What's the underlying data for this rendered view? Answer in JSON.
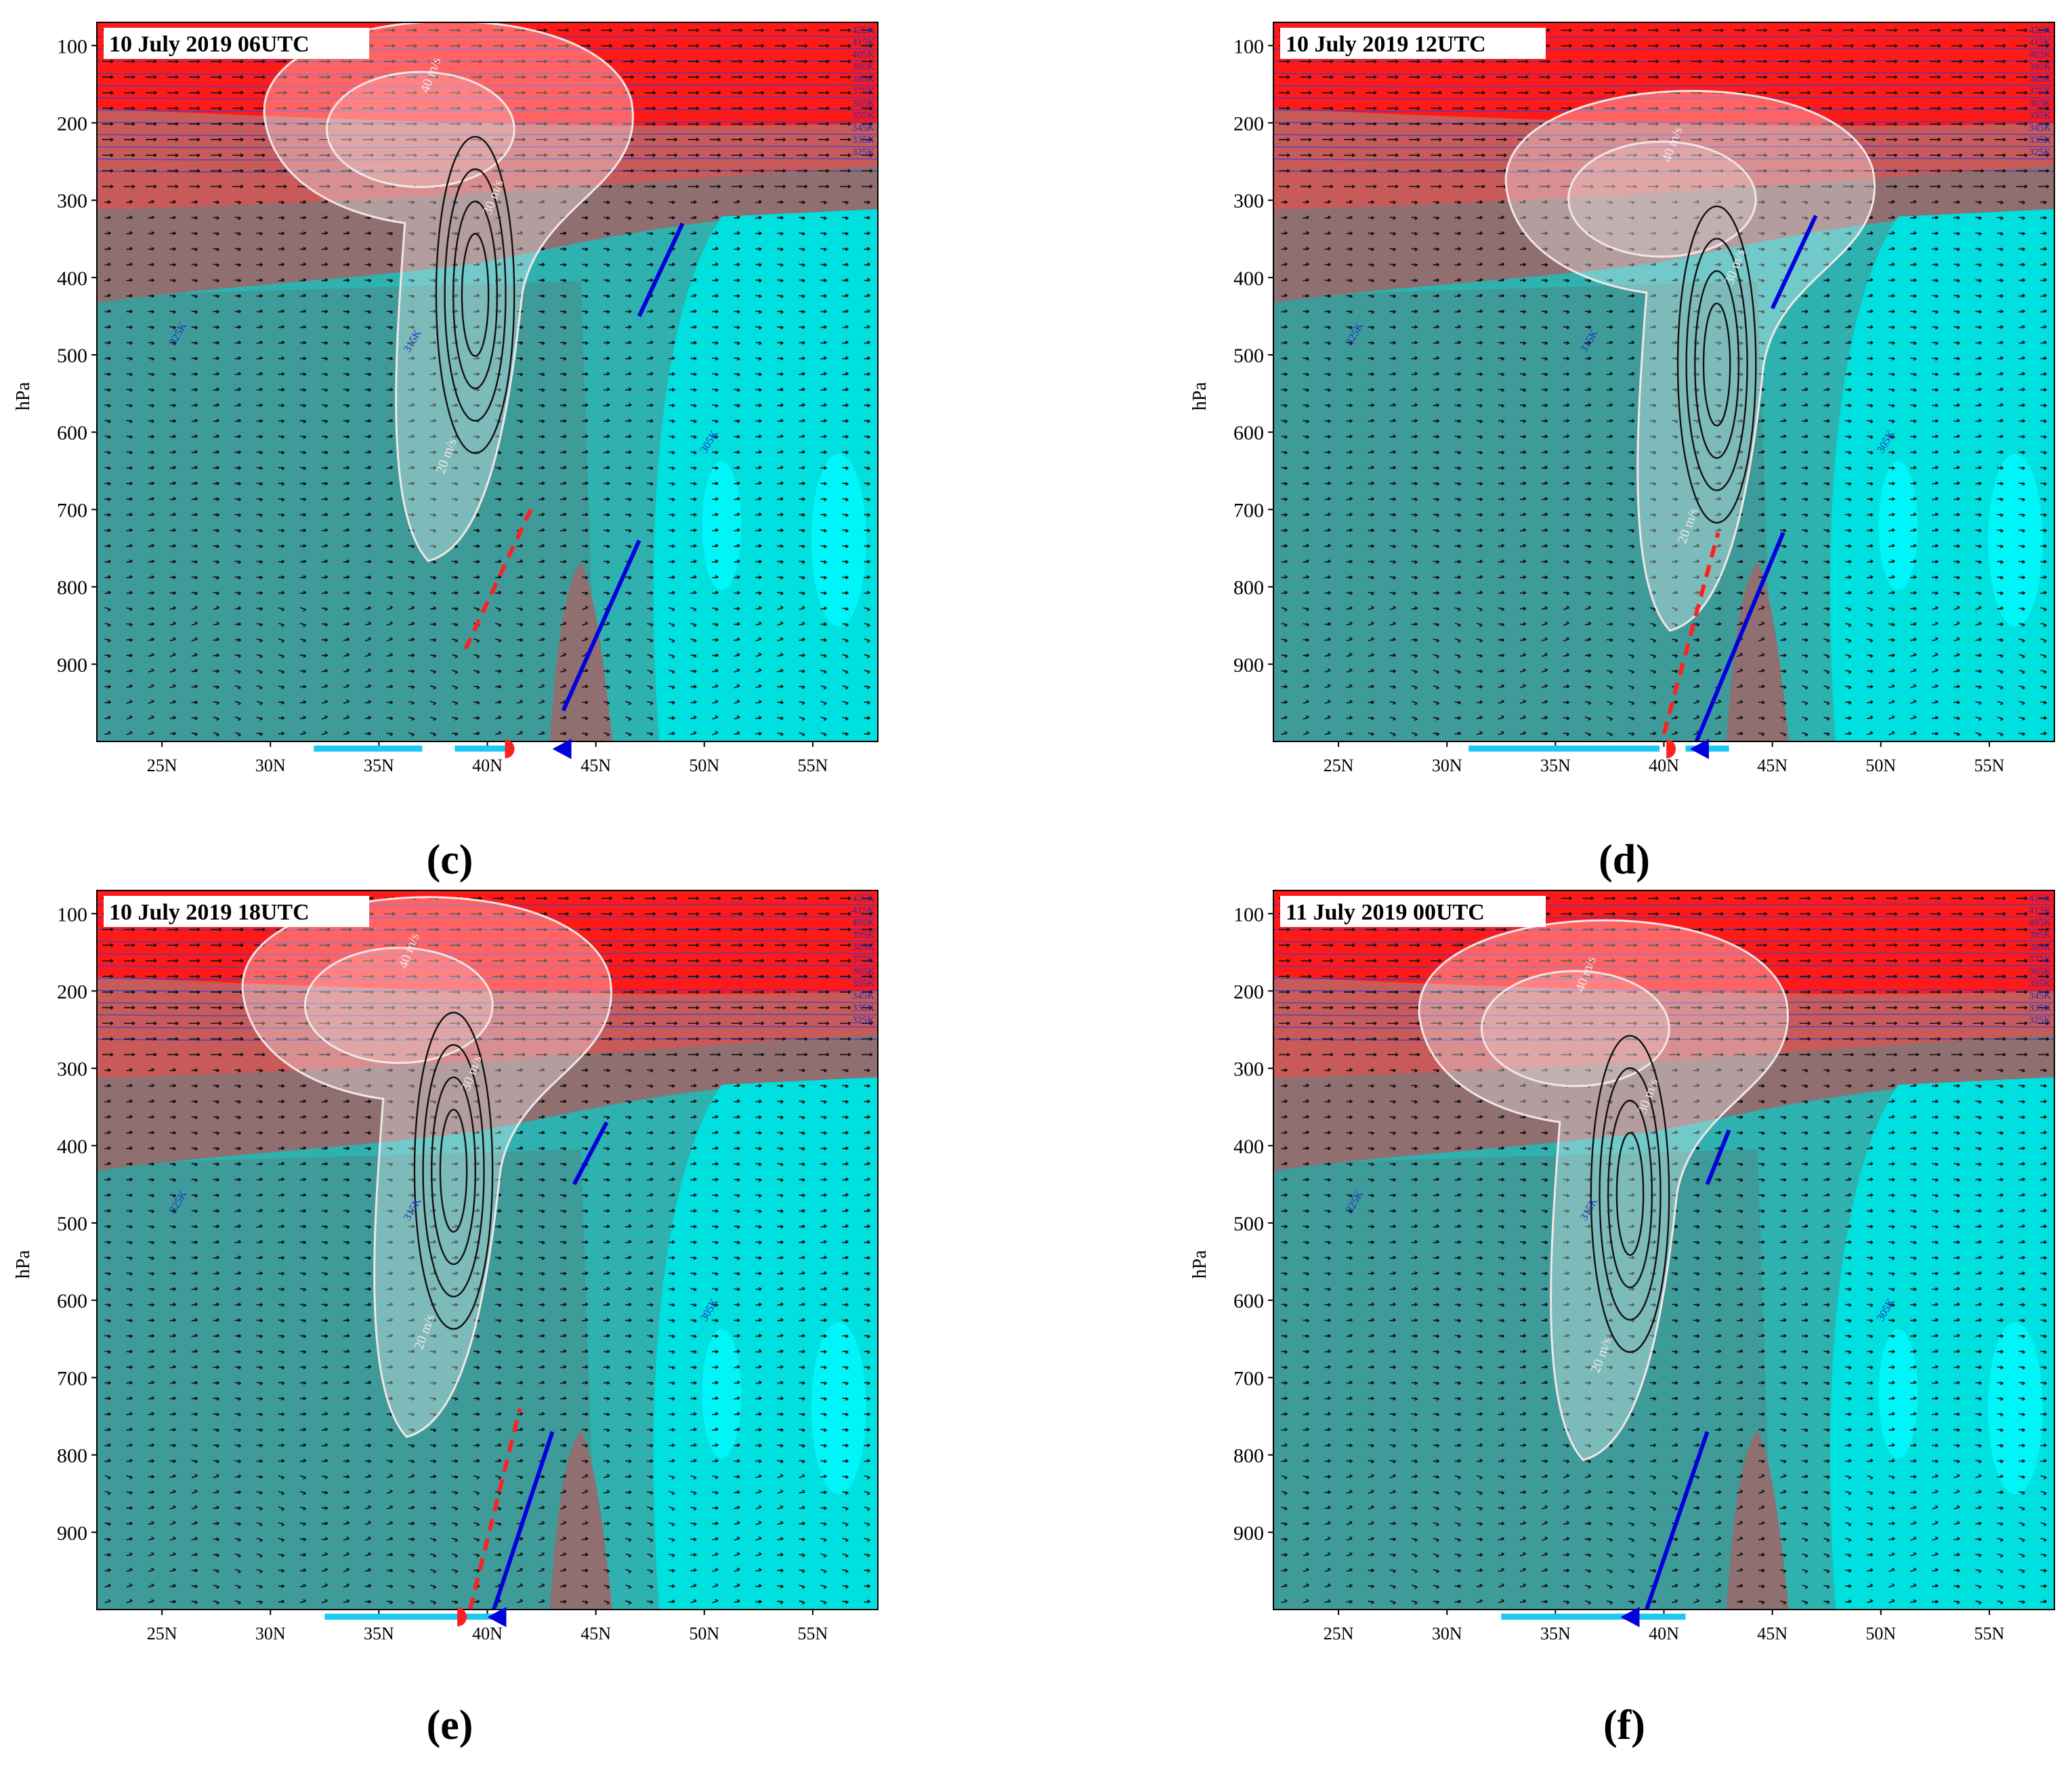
{
  "figure": {
    "panels": [
      {
        "letter": "(c)",
        "title": "10 July 2019 06UTC"
      },
      {
        "letter": "(d)",
        "title": "10 July 2019 12UTC"
      },
      {
        "letter": "(e)",
        "title": "10 July 2019 18UTC"
      },
      {
        "letter": "(f)",
        "title": "11 July 2019 00UTC"
      }
    ],
    "y_axis_label": "hPa",
    "y_ticks": [
      "100",
      "200",
      "300",
      "400",
      "500",
      "600",
      "700",
      "800",
      "900"
    ],
    "x_ticks": [
      "25N",
      "30N",
      "35N",
      "40N",
      "45N",
      "50N",
      "55N"
    ],
    "isotach_labels": [
      "40 m/s",
      "30 m/s",
      "20 m/s"
    ],
    "theta_labels_top": [
      "425K",
      "415K",
      "405K",
      "395K",
      "385K",
      "375K",
      "365K",
      "355K",
      "345K",
      "335K",
      "325K"
    ],
    "theta_labels_low": [
      "325K",
      "315K",
      "305K"
    ],
    "colors": {
      "stratosphere_red": "#ff1a1a",
      "upper_warm": "#c85a5a",
      "mid_brown": "#8f6f70",
      "mid_teal": "#3f9b99",
      "low_teal": "#2fb1b0",
      "cyan_high": "#00e0de",
      "cyan_bright": "#00f5f8",
      "cold_front": "#0000dd",
      "warm_front": "#ff2020",
      "front_bar": "#1ec8f0"
    }
  },
  "chart_data": [
    {
      "type": "cross-section",
      "title": "10 July 2019 06UTC",
      "ylabel": "hPa",
      "ylim": [
        1000,
        70
      ],
      "y_reversed": true,
      "xlim": [
        22,
        58
      ],
      "x_ticks": [
        25,
        30,
        35,
        40,
        45,
        50,
        55
      ],
      "y_ticks": [
        100,
        200,
        300,
        400,
        500,
        600,
        700,
        800,
        900
      ],
      "jet_core_lat": 38,
      "jet_core_hpa": 190,
      "jet_max_ms": 40,
      "warm_front_lat": [
        42.0,
        39.0
      ],
      "warm_front_hpa": [
        700,
        880
      ],
      "cold_front_low_lat": [
        43.5,
        47.0
      ],
      "cold_front_low_hpa": [
        960,
        740
      ],
      "cold_front_up_lat": [
        47.0,
        49.0
      ],
      "cold_front_up_hpa": [
        450,
        330
      ],
      "surface_bar_lat": [
        [
          32,
          37
        ],
        [
          38.5,
          41
        ]
      ],
      "surface_warm_symbol_lat": 41.0,
      "surface_cold_symbol_lat": 43.5
    },
    {
      "type": "cross-section",
      "title": "10 July 2019 12UTC",
      "ylabel": "hPa",
      "ylim": [
        1000,
        70
      ],
      "y_reversed": true,
      "xlim": [
        22,
        58
      ],
      "x_ticks": [
        25,
        30,
        35,
        40,
        45,
        50,
        55
      ],
      "y_ticks": [
        100,
        200,
        300,
        400,
        500,
        600,
        700,
        800,
        900
      ],
      "jet_core_lat": 41,
      "jet_core_hpa": 280,
      "jet_max_ms": 40,
      "warm_front_lat": [
        40.0,
        42.5
      ],
      "warm_front_hpa": [
        990,
        730
      ],
      "cold_front_low_lat": [
        41.5,
        45.5
      ],
      "cold_front_low_hpa": [
        1000,
        730
      ],
      "cold_front_up_lat": [
        45.0,
        47.0
      ],
      "cold_front_up_hpa": [
        440,
        320
      ],
      "surface_bar_lat": [
        [
          31,
          39.8
        ],
        [
          41,
          43
        ]
      ],
      "surface_warm_symbol_lat": 40.3,
      "surface_cold_symbol_lat": 41.7
    },
    {
      "type": "cross-section",
      "title": "10 July 2019 18UTC",
      "ylabel": "hPa",
      "ylim": [
        1000,
        70
      ],
      "y_reversed": true,
      "xlim": [
        22,
        58
      ],
      "x_ticks": [
        25,
        30,
        35,
        40,
        45,
        50,
        55
      ],
      "y_ticks": [
        100,
        200,
        300,
        400,
        500,
        600,
        700,
        800,
        900
      ],
      "jet_core_lat": 37,
      "jet_core_hpa": 200,
      "jet_max_ms": 40,
      "warm_front_lat": [
        39.2,
        41.5
      ],
      "warm_front_hpa": [
        1000,
        740
      ],
      "cold_front_low_lat": [
        40.3,
        43.0
      ],
      "cold_front_low_hpa": [
        1000,
        770
      ],
      "cold_front_up_lat": [
        44.0,
        45.5
      ],
      "cold_front_up_hpa": [
        450,
        370
      ],
      "surface_bar_lat": [
        [
          32.5,
          40.5
        ]
      ],
      "surface_warm_symbol_lat": 38.8,
      "surface_cold_symbol_lat": 40.5
    },
    {
      "type": "cross-section",
      "title": "11 July 2019 00UTC",
      "ylabel": "hPa",
      "ylim": [
        1000,
        70
      ],
      "y_reversed": true,
      "xlim": [
        22,
        58
      ],
      "x_ticks": [
        25,
        30,
        35,
        40,
        45,
        50,
        55
      ],
      "y_ticks": [
        100,
        200,
        300,
        400,
        500,
        600,
        700,
        800,
        900
      ],
      "jet_core_lat": 37,
      "jet_core_hpa": 230,
      "jet_max_ms": 40,
      "warm_front_lat": [],
      "warm_front_hpa": [],
      "cold_front_low_lat": [
        39.2,
        42.0
      ],
      "cold_front_low_hpa": [
        1000,
        770
      ],
      "cold_front_up_lat": [
        42.0,
        43.0
      ],
      "cold_front_up_hpa": [
        450,
        380
      ],
      "surface_bar_lat": [
        [
          32.5,
          41
        ]
      ],
      "surface_warm_symbol_lat": null,
      "surface_cold_symbol_lat": 38.5
    }
  ]
}
